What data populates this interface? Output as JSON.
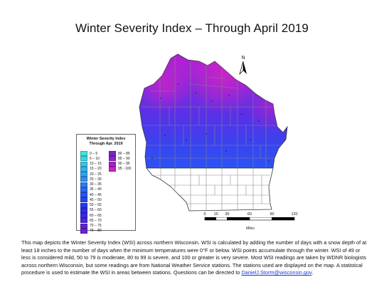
{
  "title": "Winter Severity Index – Through April 2019",
  "legend": {
    "title_line1": "Winter Severity Index",
    "title_line2": "Through Apr. 2019",
    "col1": [
      {
        "label": "0 – 5",
        "color": "#3fe3d6"
      },
      {
        "label": "5 – 10",
        "color": "#3bd4dd"
      },
      {
        "label": "10 – 15",
        "color": "#37c4e3"
      },
      {
        "label": "15 – 20",
        "color": "#34b4e8"
      },
      {
        "label": "20 – 25",
        "color": "#30a2ec"
      },
      {
        "label": "25 – 30",
        "color": "#2d90ef"
      },
      {
        "label": "30 – 35",
        "color": "#2a7df1"
      },
      {
        "label": "35 – 40",
        "color": "#286af2"
      },
      {
        "label": "40 – 45",
        "color": "#2658f2"
      },
      {
        "label": "45 – 50",
        "color": "#2447f1"
      },
      {
        "label": "50 – 55",
        "color": "#2438ee"
      },
      {
        "label": "55 – 60",
        "color": "#2b2ee9"
      },
      {
        "label": "60 – 65",
        "color": "#3a2ae4"
      },
      {
        "label": "65 – 70",
        "color": "#4a27de"
      },
      {
        "label": "70 – 75",
        "color": "#5b25d8"
      },
      {
        "label": "75 – 80",
        "color": "#6b23d2"
      }
    ],
    "col2": [
      {
        "label": "80 – 85",
        "color": "#7c22cc"
      },
      {
        "label": "85 – 90",
        "color": "#8d22c8"
      },
      {
        "label": "90 – 95",
        "color": "#a522c6"
      },
      {
        "label": "95 - 100",
        "color": "#c824c4"
      }
    ]
  },
  "north_label": "N",
  "scale": {
    "ticks": [
      "0",
      "15",
      "30",
      "60",
      "90",
      "120"
    ],
    "tick_values": [
      0,
      15,
      30,
      60,
      90,
      120
    ],
    "unit": "Miles"
  },
  "caption": {
    "text": "This map depicts the Winter Severity Index (WSI) across northern Wisconsin.  WSI is calculated by adding the number of days with a snow depth of at least 18 inches to the number of days when the minimum temperatures were 0°F or below. WSI points accumulate through the winter. WSI of 49 or less is considered mild, 50 to 79 is moderate, 80 to 99 is severe, and 100 or greater is very severe. Most WSI readings are taken by WDNR biologists across northern Wisconsin, but some readings are from National Weather Service stations. The stations used are displayed on the map. A statistical procedure is used to estimate the WSI in areas between stations. Questions can be directed to ",
    "email": "DanielJ.Storm@wisconsin.gov",
    "end": "."
  },
  "colors": {
    "north_high": "#b81fd0",
    "mid": "#6a2ee0",
    "south_low": "#2f4ff2",
    "county_lines": "#8a8a8a",
    "state_outline": "#333333"
  }
}
